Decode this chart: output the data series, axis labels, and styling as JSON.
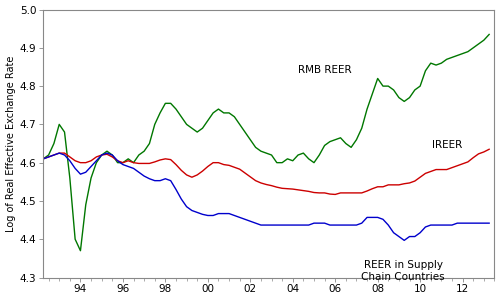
{
  "title": "",
  "ylabel": "Log of Real Effective Exchange Rate",
  "xlabel": "",
  "ylim": [
    4.3,
    5.0
  ],
  "xlim": [
    1992.25,
    2013.5
  ],
  "yticks": [
    4.3,
    4.4,
    4.5,
    4.6,
    4.7,
    4.8,
    4.9,
    5.0
  ],
  "xticks": [
    1994,
    1996,
    1998,
    2000,
    2002,
    2004,
    2006,
    2008,
    2010,
    2012
  ],
  "xticklabels": [
    "94",
    "96",
    "98",
    "00",
    "02",
    "04",
    "06",
    "08",
    "10",
    "12"
  ],
  "line_colors": [
    "#007700",
    "#cc0000",
    "#0000cc"
  ],
  "annotation_rmb": [
    2005.5,
    4.83,
    "RMB REER"
  ],
  "annotation_ireer": [
    2012.0,
    4.645,
    "IREER"
  ],
  "annotation_sc": [
    2009.2,
    4.345,
    "REER in Supply\nChain Countries"
  ],
  "rmb_x": [
    1992.25,
    1992.5,
    1992.75,
    1993.0,
    1993.25,
    1993.5,
    1993.75,
    1994.0,
    1994.25,
    1994.5,
    1994.75,
    1995.0,
    1995.25,
    1995.5,
    1995.75,
    1996.0,
    1996.25,
    1996.5,
    1996.75,
    1997.0,
    1997.25,
    1997.5,
    1997.75,
    1998.0,
    1998.25,
    1998.5,
    1998.75,
    1999.0,
    1999.25,
    1999.5,
    1999.75,
    2000.0,
    2000.25,
    2000.5,
    2000.75,
    2001.0,
    2001.25,
    2001.5,
    2001.75,
    2002.0,
    2002.25,
    2002.5,
    2002.75,
    2003.0,
    2003.25,
    2003.5,
    2003.75,
    2004.0,
    2004.25,
    2004.5,
    2004.75,
    2005.0,
    2005.25,
    2005.5,
    2005.75,
    2006.0,
    2006.25,
    2006.5,
    2006.75,
    2007.0,
    2007.25,
    2007.5,
    2007.75,
    2008.0,
    2008.25,
    2008.5,
    2008.75,
    2009.0,
    2009.25,
    2009.5,
    2009.75,
    2010.0,
    2010.25,
    2010.5,
    2010.75,
    2011.0,
    2011.25,
    2011.5,
    2011.75,
    2012.0,
    2012.25,
    2012.5,
    2012.75,
    2013.0,
    2013.25
  ],
  "rmb_y": [
    4.61,
    4.62,
    4.65,
    4.7,
    4.68,
    4.56,
    4.4,
    4.37,
    4.49,
    4.56,
    4.6,
    4.62,
    4.63,
    4.62,
    4.6,
    4.6,
    4.61,
    4.6,
    4.62,
    4.63,
    4.65,
    4.7,
    4.73,
    4.755,
    4.755,
    4.74,
    4.72,
    4.7,
    4.69,
    4.68,
    4.69,
    4.71,
    4.73,
    4.74,
    4.73,
    4.73,
    4.72,
    4.7,
    4.68,
    4.66,
    4.64,
    4.63,
    4.625,
    4.62,
    4.6,
    4.6,
    4.61,
    4.605,
    4.62,
    4.625,
    4.61,
    4.6,
    4.62,
    4.645,
    4.655,
    4.66,
    4.665,
    4.65,
    4.64,
    4.66,
    4.69,
    4.74,
    4.78,
    4.82,
    4.8,
    4.8,
    4.79,
    4.77,
    4.76,
    4.77,
    4.79,
    4.8,
    4.84,
    4.86,
    4.855,
    4.86,
    4.87,
    4.875,
    4.88,
    4.885,
    4.89,
    4.9,
    4.91,
    4.92,
    4.935
  ],
  "ireer_x": [
    1992.25,
    1992.5,
    1992.75,
    1993.0,
    1993.25,
    1993.5,
    1993.75,
    1994.0,
    1994.25,
    1994.5,
    1994.75,
    1995.0,
    1995.25,
    1995.5,
    1995.75,
    1996.0,
    1996.25,
    1996.5,
    1996.75,
    1997.0,
    1997.25,
    1997.5,
    1997.75,
    1998.0,
    1998.25,
    1998.5,
    1998.75,
    1999.0,
    1999.25,
    1999.5,
    1999.75,
    2000.0,
    2000.25,
    2000.5,
    2000.75,
    2001.0,
    2001.25,
    2001.5,
    2001.75,
    2002.0,
    2002.25,
    2002.5,
    2002.75,
    2003.0,
    2003.25,
    2003.5,
    2003.75,
    2004.0,
    2004.25,
    2004.5,
    2004.75,
    2005.0,
    2005.25,
    2005.5,
    2005.75,
    2006.0,
    2006.25,
    2006.5,
    2006.75,
    2007.0,
    2007.25,
    2007.5,
    2007.75,
    2008.0,
    2008.25,
    2008.5,
    2008.75,
    2009.0,
    2009.25,
    2009.5,
    2009.75,
    2010.0,
    2010.25,
    2010.5,
    2010.75,
    2011.0,
    2011.25,
    2011.5,
    2011.75,
    2012.0,
    2012.25,
    2012.5,
    2012.75,
    2013.0,
    2013.25
  ],
  "ireer_y": [
    4.61,
    4.615,
    4.62,
    4.625,
    4.625,
    4.615,
    4.605,
    4.6,
    4.6,
    4.605,
    4.615,
    4.62,
    4.622,
    4.615,
    4.605,
    4.6,
    4.605,
    4.6,
    4.598,
    4.598,
    4.598,
    4.602,
    4.607,
    4.61,
    4.608,
    4.595,
    4.58,
    4.568,
    4.562,
    4.568,
    4.578,
    4.59,
    4.6,
    4.6,
    4.595,
    4.593,
    4.588,
    4.583,
    4.573,
    4.563,
    4.553,
    4.547,
    4.543,
    4.54,
    4.536,
    4.533,
    4.532,
    4.531,
    4.529,
    4.527,
    4.525,
    4.522,
    4.521,
    4.521,
    4.518,
    4.517,
    4.521,
    4.521,
    4.521,
    4.521,
    4.521,
    4.526,
    4.532,
    4.537,
    4.537,
    4.542,
    4.542,
    4.542,
    4.545,
    4.547,
    4.552,
    4.562,
    4.572,
    4.577,
    4.582,
    4.582,
    4.582,
    4.587,
    4.592,
    4.597,
    4.602,
    4.613,
    4.623,
    4.628,
    4.635
  ],
  "sc_x": [
    1992.25,
    1992.5,
    1992.75,
    1993.0,
    1993.25,
    1993.5,
    1993.75,
    1994.0,
    1994.25,
    1994.5,
    1994.75,
    1995.0,
    1995.25,
    1995.5,
    1995.75,
    1996.0,
    1996.25,
    1996.5,
    1996.75,
    1997.0,
    1997.25,
    1997.5,
    1997.75,
    1998.0,
    1998.25,
    1998.5,
    1998.75,
    1999.0,
    1999.25,
    1999.5,
    1999.75,
    2000.0,
    2000.25,
    2000.5,
    2000.75,
    2001.0,
    2001.25,
    2001.5,
    2001.75,
    2002.0,
    2002.25,
    2002.5,
    2002.75,
    2003.0,
    2003.25,
    2003.5,
    2003.75,
    2004.0,
    2004.25,
    2004.5,
    2004.75,
    2005.0,
    2005.25,
    2005.5,
    2005.75,
    2006.0,
    2006.25,
    2006.5,
    2006.75,
    2007.0,
    2007.25,
    2007.5,
    2007.75,
    2008.0,
    2008.25,
    2008.5,
    2008.75,
    2009.0,
    2009.25,
    2009.5,
    2009.75,
    2010.0,
    2010.25,
    2010.5,
    2010.75,
    2011.0,
    2011.25,
    2011.5,
    2011.75,
    2012.0,
    2012.25,
    2012.5,
    2012.75,
    2013.0,
    2013.25
  ],
  "sc_y": [
    4.61,
    4.615,
    4.62,
    4.625,
    4.62,
    4.605,
    4.585,
    4.57,
    4.575,
    4.59,
    4.605,
    4.62,
    4.625,
    4.62,
    4.605,
    4.595,
    4.59,
    4.585,
    4.575,
    4.565,
    4.558,
    4.553,
    4.553,
    4.558,
    4.553,
    4.53,
    4.505,
    4.485,
    4.475,
    4.47,
    4.465,
    4.462,
    4.462,
    4.467,
    4.467,
    4.467,
    4.462,
    4.457,
    4.452,
    4.447,
    4.442,
    4.437,
    4.437,
    4.437,
    4.437,
    4.437,
    4.437,
    4.437,
    4.437,
    4.437,
    4.437,
    4.442,
    4.442,
    4.442,
    4.437,
    4.437,
    4.437,
    4.437,
    4.437,
    4.437,
    4.442,
    4.457,
    4.457,
    4.457,
    4.452,
    4.437,
    4.417,
    4.407,
    4.397,
    4.407,
    4.407,
    4.417,
    4.432,
    4.437,
    4.437,
    4.437,
    4.437,
    4.437,
    4.442,
    4.442,
    4.442,
    4.442,
    4.442,
    4.442,
    4.442
  ]
}
